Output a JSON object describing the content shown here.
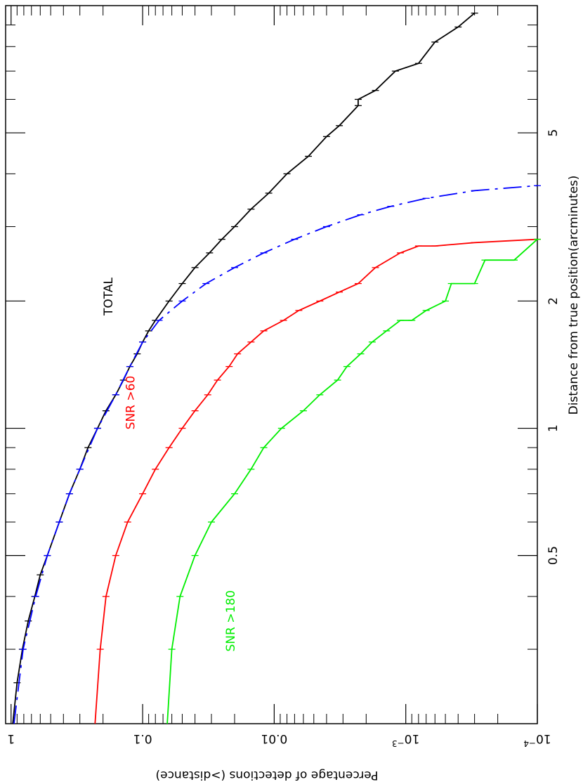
{
  "chart_data": {
    "type": "line",
    "orientation": "rotated 90 degrees clockwise",
    "x_scale": "log",
    "y_scale": "log",
    "xlim": [
      0.2,
      10
    ],
    "ylim": [
      0.0001,
      1.1
    ],
    "xlabel": "Distance from true position(arcminutes)",
    "ylabel": "Percentage of detections (>distance)",
    "x_ticks": [
      {
        "value": 0.5,
        "label": "0.5"
      },
      {
        "value": 1,
        "label": "1"
      },
      {
        "value": 2,
        "label": "2"
      },
      {
        "value": 5,
        "label": "5"
      }
    ],
    "y_ticks": [
      {
        "value": 1,
        "label": "1"
      },
      {
        "value": 0.1,
        "label": "0.1"
      },
      {
        "value": 0.01,
        "label": "0.01"
      },
      {
        "value": 0.001,
        "label": "10",
        "sup": "−3"
      },
      {
        "value": 0.0001,
        "label": "10",
        "sup": "−4"
      }
    ],
    "series": [
      {
        "name": "TOTAL",
        "color": "#000000",
        "dash": "solid",
        "points": [
          [
            0.2,
            0.97
          ],
          [
            0.25,
            0.9
          ],
          [
            0.3,
            0.82
          ],
          [
            0.35,
            0.74
          ],
          [
            0.4,
            0.66
          ],
          [
            0.45,
            0.6
          ],
          [
            0.5,
            0.53
          ],
          [
            0.6,
            0.43
          ],
          [
            0.7,
            0.36
          ],
          [
            0.8,
            0.3
          ],
          [
            0.9,
            0.26
          ],
          [
            1.0,
            0.22
          ],
          [
            1.1,
            0.19
          ],
          [
            1.2,
            0.16
          ],
          [
            1.3,
            0.14
          ],
          [
            1.4,
            0.125
          ],
          [
            1.5,
            0.11
          ],
          [
            1.6,
            0.1
          ],
          [
            1.7,
            0.09
          ],
          [
            1.8,
            0.08
          ],
          [
            2.0,
            0.063
          ],
          [
            2.2,
            0.05
          ],
          [
            2.4,
            0.04
          ],
          [
            2.6,
            0.031
          ],
          [
            2.8,
            0.025
          ],
          [
            3.0,
            0.02
          ],
          [
            3.3,
            0.015
          ],
          [
            3.6,
            0.011
          ],
          [
            4.0,
            0.008
          ],
          [
            4.4,
            0.0055
          ],
          [
            4.9,
            0.004
          ],
          [
            5.2,
            0.0032
          ],
          [
            5.8,
            0.0023
          ],
          [
            6.0,
            0.0023
          ],
          [
            6.3,
            0.0017
          ],
          [
            7.0,
            0.0012
          ],
          [
            7.3,
            0.0008
          ],
          [
            8.2,
            0.0006
          ],
          [
            8.9,
            0.0004
          ],
          [
            9.6,
            0.0003
          ]
        ]
      },
      {
        "name": "",
        "color": "#0000ff",
        "dash": "dash-dot",
        "points": [
          [
            0.2,
            0.95
          ],
          [
            0.3,
            0.81
          ],
          [
            0.4,
            0.65
          ],
          [
            0.5,
            0.53
          ],
          [
            0.6,
            0.43
          ],
          [
            0.7,
            0.36
          ],
          [
            0.8,
            0.3
          ],
          [
            1.0,
            0.22
          ],
          [
            1.2,
            0.16
          ],
          [
            1.4,
            0.125
          ],
          [
            1.6,
            0.1
          ],
          [
            1.8,
            0.075
          ],
          [
            2.0,
            0.05
          ],
          [
            2.2,
            0.033
          ],
          [
            2.4,
            0.02
          ],
          [
            2.6,
            0.012
          ],
          [
            2.8,
            0.007
          ],
          [
            3.0,
            0.004
          ],
          [
            3.2,
            0.0022
          ],
          [
            3.35,
            0.0013
          ],
          [
            3.5,
            0.0007
          ],
          [
            3.65,
            0.0003
          ],
          [
            3.75,
            0.0001
          ]
        ]
      },
      {
        "name": "SNR >60",
        "color": "#ff0000",
        "dash": "solid",
        "points": [
          [
            0.2,
            0.23
          ],
          [
            0.3,
            0.21
          ],
          [
            0.4,
            0.19
          ],
          [
            0.5,
            0.16
          ],
          [
            0.6,
            0.13
          ],
          [
            0.7,
            0.1
          ],
          [
            0.8,
            0.08
          ],
          [
            0.9,
            0.063
          ],
          [
            1.0,
            0.05
          ],
          [
            1.1,
            0.04
          ],
          [
            1.2,
            0.032
          ],
          [
            1.3,
            0.027
          ],
          [
            1.4,
            0.022
          ],
          [
            1.5,
            0.019
          ],
          [
            1.6,
            0.015
          ],
          [
            1.7,
            0.012
          ],
          [
            1.8,
            0.0085
          ],
          [
            1.9,
            0.0065
          ],
          [
            2.0,
            0.0045
          ],
          [
            2.1,
            0.0032
          ],
          [
            2.2,
            0.0023
          ],
          [
            2.4,
            0.0017
          ],
          [
            2.6,
            0.0011
          ],
          [
            2.7,
            0.0008
          ],
          [
            2.7,
            0.0006
          ],
          [
            2.75,
            0.0003
          ],
          [
            2.8,
            0.0001
          ]
        ]
      },
      {
        "name": "SNR >180",
        "color": "#00ee00",
        "dash": "solid",
        "points": [
          [
            0.2,
            0.065
          ],
          [
            0.3,
            0.06
          ],
          [
            0.4,
            0.052
          ],
          [
            0.5,
            0.04
          ],
          [
            0.6,
            0.03
          ],
          [
            0.7,
            0.02
          ],
          [
            0.8,
            0.015
          ],
          [
            0.9,
            0.012
          ],
          [
            1.0,
            0.0088
          ],
          [
            1.1,
            0.006
          ],
          [
            1.2,
            0.0045
          ],
          [
            1.3,
            0.0033
          ],
          [
            1.4,
            0.0028
          ],
          [
            1.5,
            0.0022
          ],
          [
            1.6,
            0.0018
          ],
          [
            1.7,
            0.0014
          ],
          [
            1.8,
            0.0011
          ],
          [
            1.8,
            0.0009
          ],
          [
            1.9,
            0.0007
          ],
          [
            2.0,
            0.0005
          ],
          [
            2.2,
            0.00045
          ],
          [
            2.2,
            0.0003
          ],
          [
            2.5,
            0.00025
          ],
          [
            2.5,
            0.00015
          ],
          [
            2.8,
            0.0001
          ]
        ]
      }
    ],
    "annotations": [
      {
        "text": "TOTAL",
        "x": 2.05,
        "y": 0.17,
        "color": "#000000"
      },
      {
        "text": "SNR >60",
        "x": 1.15,
        "y": 0.115,
        "color": "#ff0000"
      },
      {
        "text": "SNR >180",
        "x": 0.35,
        "y": 0.02,
        "color": "#00ee00"
      }
    ]
  }
}
